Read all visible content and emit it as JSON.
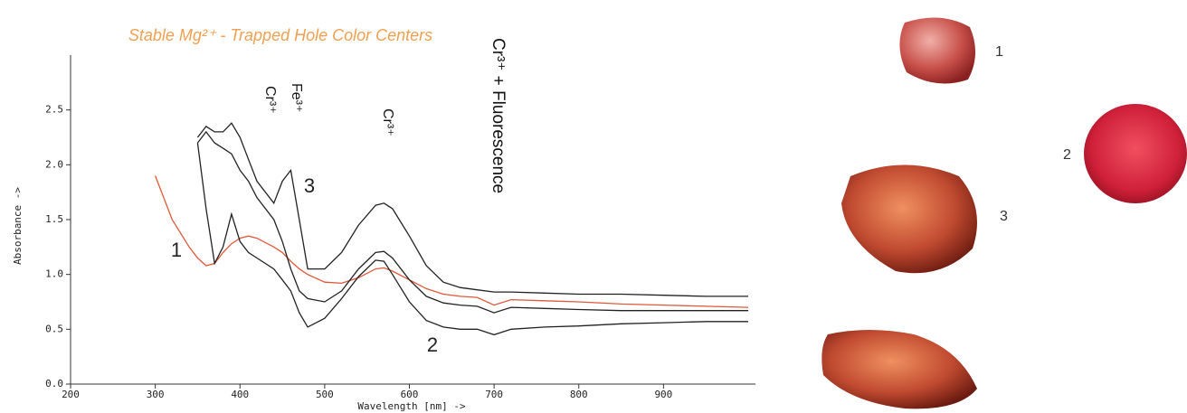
{
  "chart_data": {
    "type": "line",
    "title": "Stable Mg²⁺ - Trapped Hole Color Centers",
    "x_label": "Wavelength [nm] ->",
    "y_label": "Absorbance ->",
    "x": [
      300,
      320,
      340,
      350,
      360,
      370,
      380,
      390,
      400,
      410,
      420,
      440,
      450,
      460,
      470,
      480,
      500,
      520,
      540,
      560,
      570,
      580,
      600,
      620,
      640,
      660,
      680,
      700,
      720,
      760,
      800,
      850,
      900,
      950,
      1000
    ],
    "series": [
      {
        "name": "1",
        "color": "#e0583a",
        "values": [
          1.9,
          1.5,
          1.25,
          1.15,
          1.08,
          1.1,
          1.2,
          1.28,
          1.33,
          1.35,
          1.33,
          1.25,
          1.2,
          1.12,
          1.05,
          1.0,
          0.93,
          0.92,
          0.97,
          1.05,
          1.06,
          1.03,
          0.95,
          0.87,
          0.82,
          0.8,
          0.79,
          0.72,
          0.77,
          0.76,
          0.75,
          0.73,
          0.72,
          0.71,
          0.7
        ]
      },
      {
        "name": "2",
        "color": "#222222",
        "values": [
          null,
          null,
          null,
          2.2,
          1.6,
          1.1,
          1.25,
          1.55,
          1.3,
          1.2,
          1.15,
          1.05,
          0.95,
          0.85,
          0.65,
          0.52,
          0.6,
          0.78,
          0.98,
          1.13,
          1.12,
          1.0,
          0.75,
          0.58,
          0.52,
          0.5,
          0.5,
          0.45,
          0.5,
          0.52,
          0.53,
          0.55,
          0.56,
          0.57,
          0.57
        ]
      },
      {
        "color": "#222222",
        "values": [
          null,
          null,
          null,
          2.2,
          2.3,
          2.2,
          2.15,
          2.1,
          1.95,
          1.85,
          1.7,
          1.5,
          1.3,
          1.05,
          0.85,
          0.78,
          0.75,
          0.85,
          1.05,
          1.2,
          1.21,
          1.15,
          0.95,
          0.8,
          0.74,
          0.72,
          0.71,
          0.65,
          0.7,
          0.69,
          0.68,
          0.67,
          0.67,
          0.67,
          0.67
        ]
      },
      {
        "name": "3",
        "color": "#222222",
        "values": [
          null,
          null,
          null,
          2.25,
          2.35,
          2.3,
          2.3,
          2.38,
          2.25,
          2.05,
          1.85,
          1.65,
          1.85,
          1.95,
          1.5,
          1.05,
          1.05,
          1.2,
          1.45,
          1.63,
          1.65,
          1.6,
          1.35,
          1.08,
          0.93,
          0.88,
          0.86,
          0.84,
          0.84,
          0.83,
          0.82,
          0.82,
          0.81,
          0.8,
          0.8
        ]
      }
    ],
    "annotations": [
      "Cr³⁺",
      "Fe³⁺",
      "Cr³⁺",
      "Cr³⁺ + Fluorescence"
    ],
    "xlim": [
      200,
      1000
    ],
    "xticks": [
      200,
      300,
      400,
      500,
      600,
      700,
      800,
      900
    ],
    "ylim": [
      0,
      3.0
    ],
    "yticks": [
      {
        "value": 0,
        "label": "0.0"
      },
      0.5,
      {
        "value": 1,
        "label": "1.0"
      },
      1.5,
      {
        "value": 2,
        "label": "2.0"
      },
      2.5
    ],
    "grid": false
  },
  "photos": [
    {
      "label": "1"
    },
    {
      "label": "2"
    },
    {
      "label": "3"
    }
  ]
}
